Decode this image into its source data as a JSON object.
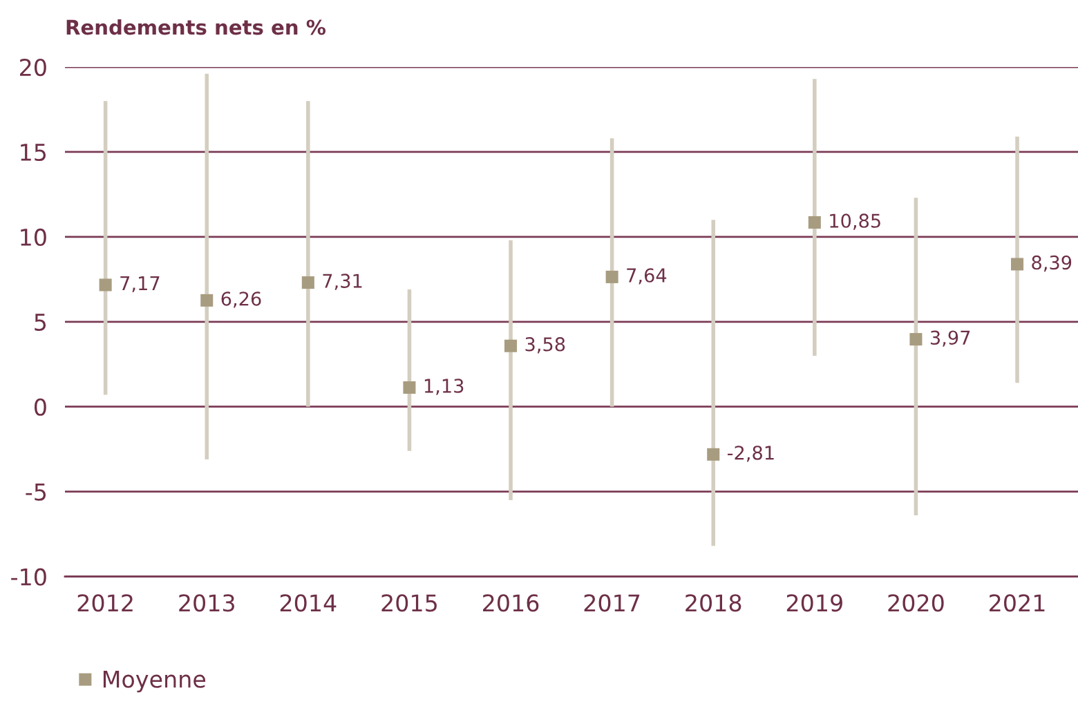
{
  "chart_data": {
    "type": "scatter",
    "ylabel": "Rendements nets en %",
    "categories": [
      "2012",
      "2013",
      "2014",
      "2015",
      "2016",
      "2017",
      "2018",
      "2019",
      "2020",
      "2021"
    ],
    "series": [
      {
        "name": "Moyenne",
        "color": "#a89c80",
        "values": [
          7.17,
          6.26,
          7.31,
          1.13,
          3.58,
          7.64,
          -2.81,
          10.85,
          3.97,
          8.39
        ],
        "errors": [
          [
            0.7,
            18.0
          ],
          [
            -3.1,
            19.6
          ],
          [
            0,
            18.0
          ],
          [
            -2.6,
            6.9
          ],
          [
            -5.5,
            9.8
          ],
          [
            0,
            15.8
          ],
          [
            -8.2,
            11.0
          ],
          [
            3.0,
            19.3
          ],
          [
            -6.4,
            12.3
          ],
          [
            1.4,
            15.9
          ]
        ],
        "value_labels": [
          "7,17",
          "6,26",
          "7,31",
          "1,13",
          "3,58",
          "7,64",
          "-2,81",
          "10,85",
          "3,97",
          "8,39"
        ]
      }
    ],
    "ylim": [
      -10,
      20
    ],
    "yticks": [
      -10,
      -5,
      0,
      5,
      10,
      15,
      20
    ],
    "grid": "y",
    "legend": "bottom",
    "marker": "square"
  }
}
